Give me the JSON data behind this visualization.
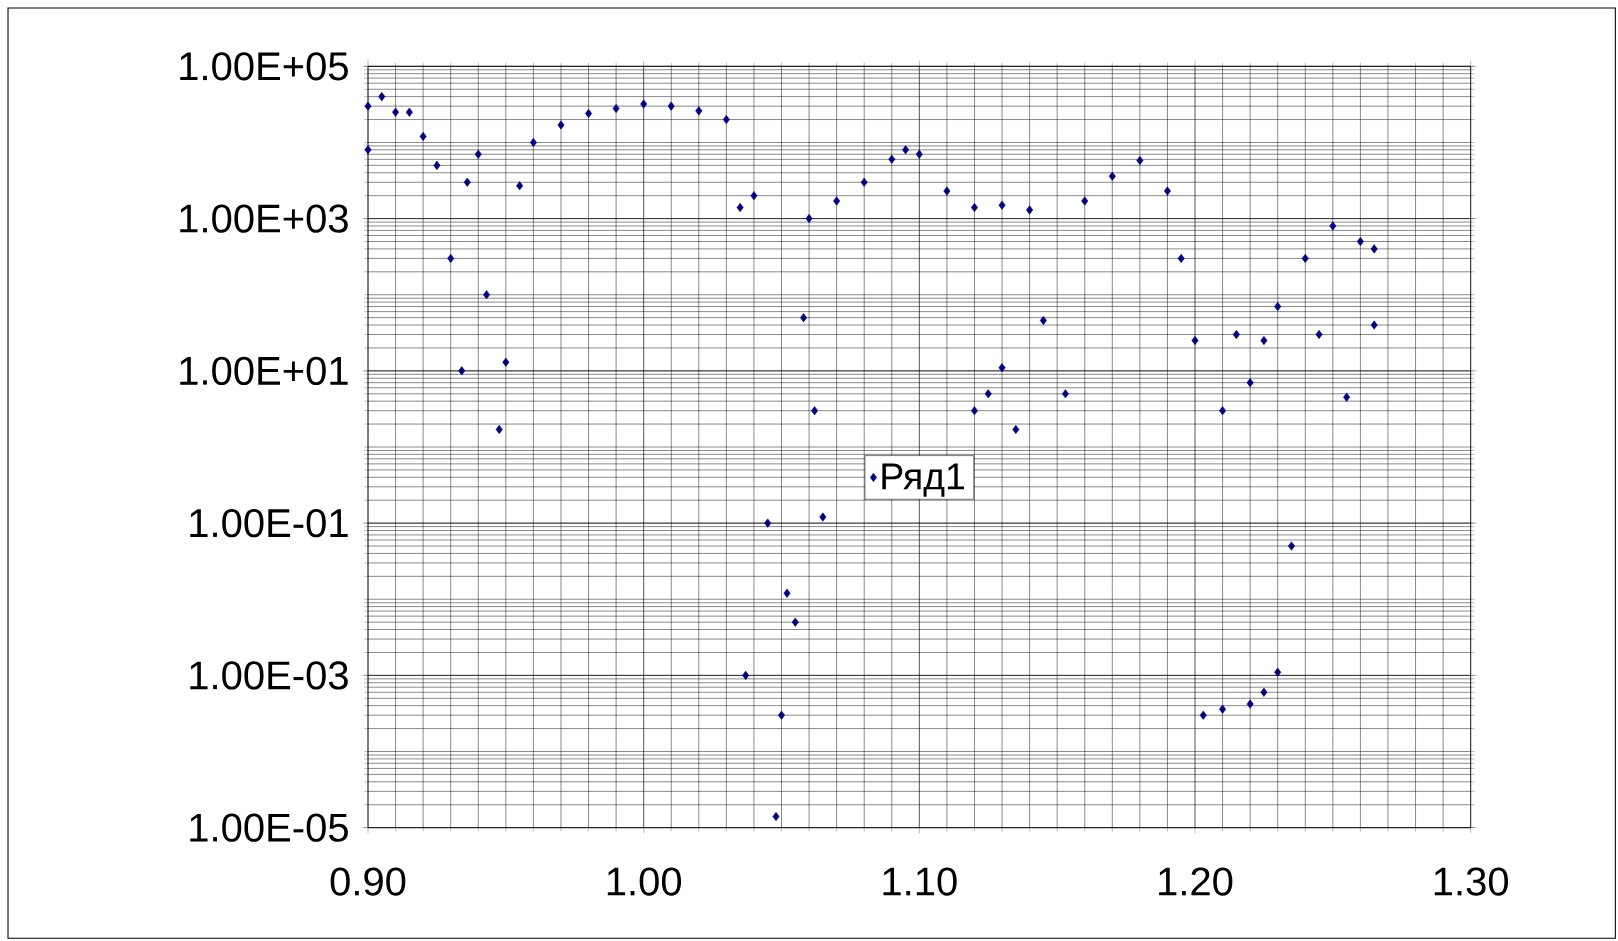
{
  "chart_data": {
    "type": "scatter",
    "log": "y",
    "grid": true,
    "legend": "center",
    "marker": "diamond",
    "xlim": [
      0.9,
      1.3
    ],
    "xticks": [
      {
        "value": 0.9,
        "label": "0.90"
      },
      {
        "value": 1.0,
        "label": "1.00"
      },
      {
        "value": 1.1,
        "label": "1.10"
      },
      {
        "value": 1.2,
        "label": "1.20"
      },
      {
        "value": 1.3,
        "label": "1.30"
      }
    ],
    "ylim": [
      1e-05,
      100000
    ],
    "yticks": [
      {
        "value": 1e-05,
        "label": "1.00E-05"
      },
      {
        "value": 0.001,
        "label": "1.00E-03"
      },
      {
        "value": 0.1,
        "label": "1.00E-01"
      },
      {
        "value": 10,
        "label": "1.00E+01"
      },
      {
        "value": 1000,
        "label": "1.00E+03"
      },
      {
        "value": 100000,
        "label": "1.00E+05"
      }
    ],
    "series": [
      {
        "name": "Ряд1",
        "color": "#000080",
        "x": [
          0.9,
          0.9,
          0.905,
          0.91,
          0.915,
          0.92,
          0.925,
          0.93,
          0.934,
          0.936,
          0.94,
          0.943,
          0.9476,
          0.95,
          0.955,
          0.96,
          0.97,
          0.98,
          0.99,
          1.0,
          1.01,
          1.02,
          1.03,
          1.035,
          1.037,
          1.04,
          1.045,
          1.048,
          1.05,
          1.052,
          1.055,
          1.058,
          1.06,
          1.062,
          1.065,
          1.07,
          1.08,
          1.09,
          1.095,
          1.1,
          1.11,
          1.12,
          1.12,
          1.125,
          1.13,
          1.13,
          1.135,
          1.14,
          1.145,
          1.153,
          1.16,
          1.17,
          1.18,
          1.19,
          1.195,
          1.2,
          1.203,
          1.21,
          1.21,
          1.215,
          1.22,
          1.22,
          1.225,
          1.225,
          1.23,
          1.23,
          1.235,
          1.24,
          1.245,
          1.25,
          1.255,
          1.26,
          1.265,
          1.265
        ],
        "values": [
          30000,
          8000,
          40000,
          25000,
          25000,
          12000,
          5000,
          300,
          10,
          3000,
          7000,
          100,
          1.7,
          13,
          2700,
          10000,
          17000,
          24000,
          28000,
          32000,
          30000,
          26000,
          20000,
          1400,
          0.001,
          2000,
          0.1,
          1.4e-05,
          0.0003,
          0.012,
          0.005,
          50,
          1000,
          3,
          0.12,
          1700,
          3000,
          6000,
          8000,
          7000,
          2300,
          1400,
          3,
          5,
          1500,
          11,
          1.7,
          1300,
          46,
          5,
          1700,
          3600,
          5800,
          2300,
          300,
          25,
          0.0003,
          3,
          0.00036,
          30,
          0.00042,
          7,
          25,
          0.0006,
          70,
          0.0011,
          0.05,
          300,
          30,
          800,
          4.5,
          500,
          400,
          40
        ]
      }
    ]
  }
}
